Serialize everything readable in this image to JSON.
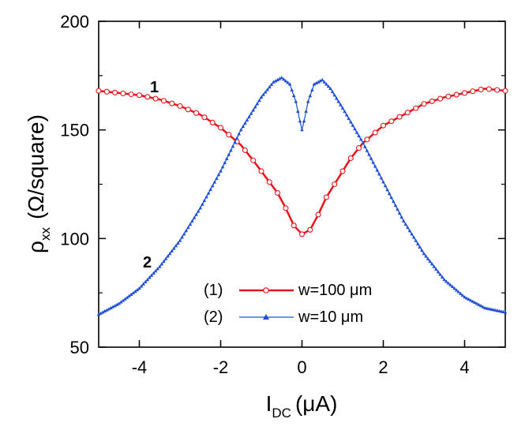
{
  "chart_data": {
    "type": "line",
    "title": "",
    "xlabel": {
      "main": "I",
      "sub": "DC",
      "unit": "(μA)"
    },
    "ylabel": {
      "main": "ρ",
      "sub": "xx",
      "unit": "(Ω/square)"
    },
    "xlim": [
      -5,
      5
    ],
    "ylim": [
      50,
      200
    ],
    "xticks": [
      -4,
      -2,
      0,
      2,
      4
    ],
    "yticks": [
      50,
      100,
      150,
      200
    ],
    "xtick_labels": [
      "-4",
      "-2",
      "0",
      "2",
      "4"
    ],
    "ytick_labels": [
      "50",
      "100",
      "150",
      "200"
    ],
    "grid": false,
    "legend_position": "lower-center",
    "series": [
      {
        "name": "w=100 μm",
        "legend_tag": "(1)",
        "curve_label": "1",
        "color": "#e8141c",
        "marker": "open-circle",
        "x": [
          -5.0,
          -4.5,
          -4.0,
          -3.5,
          -3.0,
          -2.5,
          -2.0,
          -1.5,
          -1.2,
          -1.0,
          -0.8,
          -0.6,
          -0.4,
          -0.2,
          0.0,
          0.2,
          0.4,
          0.6,
          0.8,
          1.0,
          1.2,
          1.5,
          2.0,
          2.5,
          3.0,
          3.5,
          4.0,
          4.5,
          5.0
        ],
        "y": [
          168,
          167,
          166,
          164,
          161,
          157,
          151,
          143,
          136,
          131,
          126,
          121,
          114,
          106,
          102,
          104,
          111,
          119,
          125,
          131,
          137,
          144,
          152,
          157,
          162,
          165,
          167,
          169,
          168
        ]
      },
      {
        "name": "w=10 μm",
        "legend_tag": "(2)",
        "curve_label": "2",
        "color": "#1f4fd8",
        "marker": "filled-triangle",
        "x": [
          -5.0,
          -4.5,
          -4.0,
          -3.5,
          -3.0,
          -2.5,
          -2.0,
          -1.5,
          -1.0,
          -0.7,
          -0.5,
          -0.3,
          -0.15,
          -0.05,
          0.0,
          0.05,
          0.15,
          0.3,
          0.5,
          0.7,
          1.0,
          1.5,
          2.0,
          2.5,
          3.0,
          3.5,
          4.0,
          4.5,
          5.0
        ],
        "y": [
          65,
          70,
          77,
          87,
          99,
          114,
          131,
          150,
          165,
          172,
          174,
          171,
          163,
          154,
          150,
          154,
          163,
          171,
          173,
          169,
          160,
          144,
          126,
          108,
          93,
          81,
          73,
          68,
          66
        ]
      }
    ]
  }
}
